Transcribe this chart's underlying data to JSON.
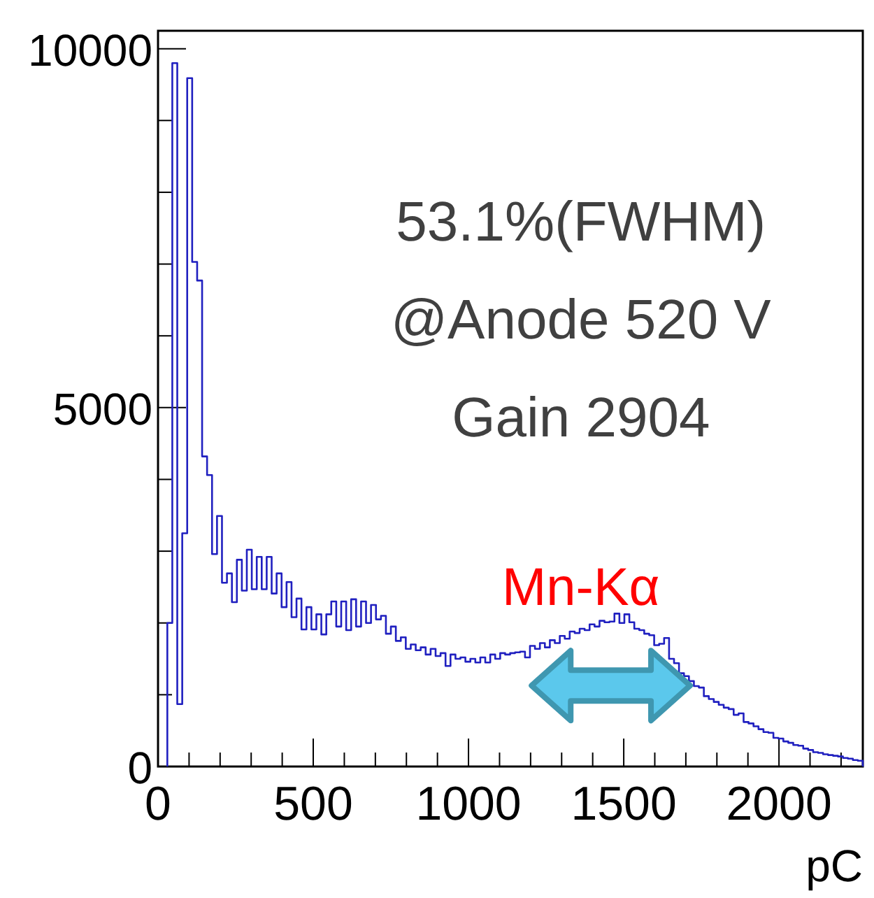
{
  "chart_data": {
    "type": "histogram",
    "xlabel": "pC",
    "color": "#2020c0",
    "bins": [
      30,
      46,
      62,
      78,
      94,
      110,
      126,
      142,
      158,
      174,
      190,
      206,
      222,
      238,
      254,
      270,
      286,
      302,
      318,
      334,
      350,
      366,
      382,
      398,
      414,
      430,
      446,
      462,
      478,
      494,
      510,
      526,
      542,
      558,
      574,
      590,
      606,
      622,
      638,
      654,
      670,
      686,
      702,
      718,
      734,
      750,
      766,
      782,
      798,
      814,
      830,
      846,
      862,
      878,
      894,
      910,
      926,
      942,
      958,
      974,
      990,
      1006,
      1022,
      1038,
      1054,
      1070,
      1086,
      1102,
      1118,
      1134,
      1150,
      1166,
      1182,
      1198,
      1214,
      1230,
      1246,
      1262,
      1278,
      1294,
      1310,
      1326,
      1342,
      1358,
      1374,
      1390,
      1406,
      1422,
      1438,
      1454,
      1470,
      1486,
      1502,
      1518,
      1534,
      1550,
      1566,
      1582,
      1598,
      1614,
      1630,
      1646,
      1662,
      1678,
      1694,
      1710,
      1726,
      1742,
      1758,
      1774,
      1790,
      1806,
      1822,
      1838,
      1854,
      1870,
      1886,
      1902,
      1918,
      1934,
      1950,
      1966,
      1982,
      1998,
      2014,
      2030,
      2046,
      2062,
      2078,
      2094,
      2110,
      2126,
      2142,
      2158,
      2174,
      2190,
      2206,
      2222,
      2238,
      2254,
      2270
    ],
    "values": [
      2000,
      9800,
      870,
      3250,
      9590,
      7030,
      6770,
      4320,
      4060,
      2960,
      3490,
      2560,
      2690,
      2290,
      2880,
      2450,
      3020,
      2470,
      2920,
      2470,
      2920,
      2410,
      2690,
      2220,
      2570,
      2080,
      2340,
      1910,
      2220,
      1910,
      2120,
      1840,
      2120,
      2300,
      1950,
      2300,
      1900,
      2330,
      1950,
      2300,
      2000,
      2250,
      2050,
      2100,
      1850,
      1950,
      1750,
      1800,
      1640,
      1700,
      1620,
      1660,
      1560,
      1640,
      1540,
      1580,
      1400,
      1560,
      1500,
      1520,
      1460,
      1500,
      1450,
      1520,
      1450,
      1560,
      1500,
      1580,
      1560,
      1580,
      1590,
      1600,
      1520,
      1680,
      1640,
      1720,
      1660,
      1760,
      1720,
      1820,
      1780,
      1880,
      1860,
      1920,
      1900,
      1980,
      1950,
      2030,
      2010,
      2020,
      2130,
      2000,
      2120,
      2010,
      1920,
      1900,
      1850,
      1830,
      1690,
      1710,
      1790,
      1500,
      1440,
      1300,
      1260,
      1190,
      1120,
      1100,
      980,
      940,
      900,
      860,
      820,
      800,
      720,
      740,
      620,
      600,
      560,
      520,
      480,
      470,
      400,
      390,
      350,
      330,
      300,
      290,
      250,
      230,
      200,
      190,
      170,
      160,
      150,
      140,
      120,
      110,
      90,
      80
    ],
    "xlim": [
      0,
      2270
    ],
    "ylim": [
      0,
      10250
    ],
    "xticks": [
      0,
      {
        "value": 100,
        "label": null
      },
      {
        "value": 200,
        "label": null
      },
      {
        "value": 300,
        "label": null
      },
      {
        "value": 400,
        "label": null
      },
      500,
      {
        "value": 600,
        "label": null
      },
      {
        "value": 700,
        "label": null
      },
      {
        "value": 800,
        "label": null
      },
      {
        "value": 900,
        "label": null
      },
      1000,
      {
        "value": 1100,
        "label": null
      },
      {
        "value": 1200,
        "label": null
      },
      {
        "value": 1300,
        "label": null
      },
      {
        "value": 1400,
        "label": null
      },
      1500,
      {
        "value": 1600,
        "label": null
      },
      {
        "value": 1700,
        "label": null
      },
      {
        "value": 1800,
        "label": null
      },
      {
        "value": 1900,
        "label": null
      },
      2000,
      {
        "value": 2100,
        "label": null
      },
      {
        "value": 2200,
        "label": null
      }
    ],
    "yticks": [
      0,
      {
        "value": 1000,
        "label": null
      },
      {
        "value": 2000,
        "label": null
      },
      {
        "value": 3000,
        "label": null
      },
      {
        "value": 4000,
        "label": null
      },
      5000,
      {
        "value": 6000,
        "label": null
      },
      {
        "value": 7000,
        "label": null
      },
      {
        "value": 8000,
        "label": null
      },
      {
        "value": 9000,
        "label": null
      },
      10000
    ],
    "annotations": [
      "53.1%(FWHM)",
      "@Anode 520 V",
      "Gain 2904",
      "Mn-Kα"
    ]
  }
}
